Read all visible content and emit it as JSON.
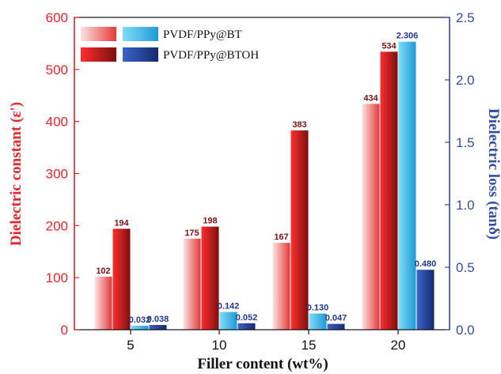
{
  "chart_data": {
    "type": "bar",
    "categories": [
      "5",
      "10",
      "15",
      "20"
    ],
    "xlabel": "Filler content (wt%)",
    "left_axis": {
      "label": "Dielectric constant (ε')",
      "ylim": [
        0,
        600
      ],
      "ticks": [
        "0",
        "100",
        "200",
        "300",
        "400",
        "500",
        "600"
      ],
      "color": "#e8232a"
    },
    "right_axis": {
      "label": "Dielectric loss (tanδ)",
      "ylim": [
        0,
        2.5
      ],
      "ticks": [
        "0.0",
        "0.5",
        "1.0",
        "1.5",
        "2.0",
        "2.5"
      ],
      "color": "#2f4fa0"
    },
    "legend": {
      "position": "top-left",
      "entries": [
        "PVDF/PPy@BT",
        "PVDF/PPy@BTOH"
      ]
    },
    "series": [
      {
        "name": "PVDF/PPy@BT",
        "quantity": "ε'",
        "axis": "left",
        "values": [
          102,
          175,
          167,
          434
        ],
        "labels": [
          "102",
          "175",
          "167",
          "434"
        ],
        "color": "#f08a8a"
      },
      {
        "name": "PVDF/PPy@BTOH",
        "quantity": "ε'",
        "axis": "left",
        "values": [
          194,
          198,
          383,
          534
        ],
        "labels": [
          "194",
          "198",
          "383",
          "534"
        ],
        "color": "#b31b1b"
      },
      {
        "name": "PVDF/PPy@BT",
        "quantity": "tanδ",
        "axis": "right",
        "values": [
          0.032,
          0.142,
          0.13,
          2.306
        ],
        "labels": [
          "0.032",
          "0.142",
          "0.130",
          "2.306"
        ],
        "color": "#2fb0e0"
      },
      {
        "name": "PVDF/PPy@BTOH",
        "quantity": "tanδ",
        "axis": "right",
        "values": [
          0.038,
          0.052,
          0.047,
          0.48
        ],
        "labels": [
          "0.038",
          "0.052",
          "0.047",
          "0.480"
        ],
        "color": "#1f3a8f"
      }
    ]
  }
}
